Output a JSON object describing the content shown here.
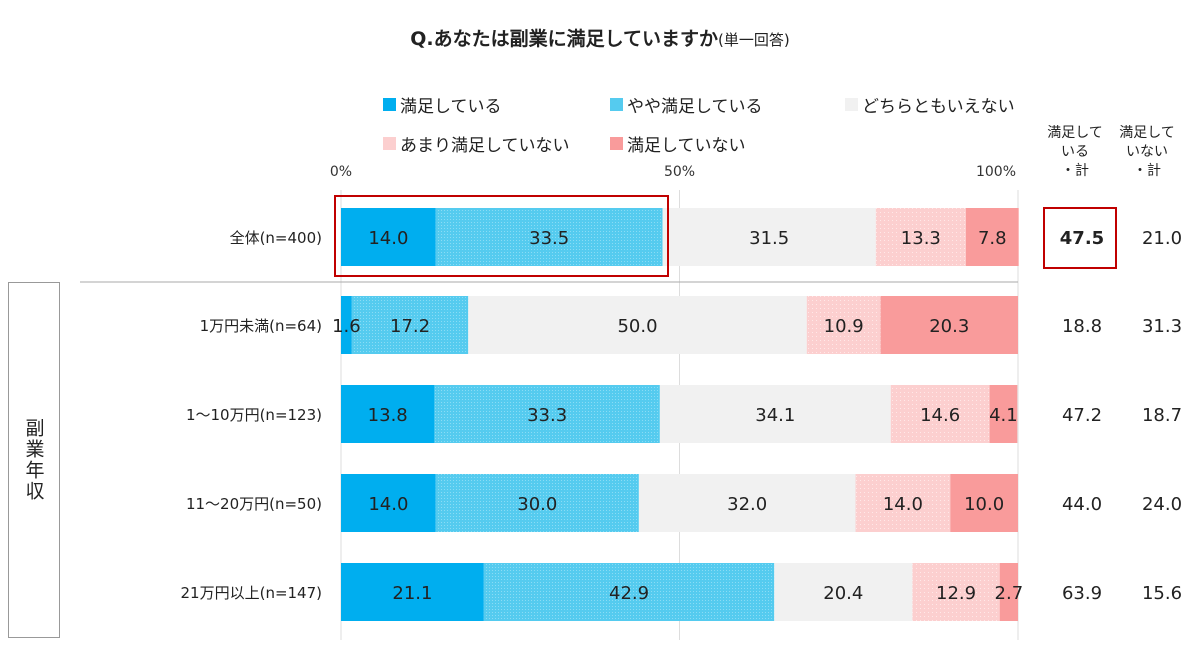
{
  "chart_data": {
    "type": "bar",
    "orientation": "horizontal",
    "stacked": true,
    "title": "Q.あなたは副業に満足していますか",
    "subtitle": "(単一回答)",
    "xlim": [
      0,
      100
    ],
    "x_ticks": [
      "0%",
      "50%",
      "100%"
    ],
    "legend_placement": "top",
    "group_label": "副業年収",
    "categories": [
      "全体(n=400)",
      "1万円未満(n=64)",
      "1～10万円(n=123)",
      "11～20万円(n=50)",
      "21万円以上(n=147)"
    ],
    "series": [
      {
        "name": "満足している",
        "color": "#00AEEF",
        "values": [
          14.0,
          1.6,
          13.8,
          14.0,
          21.1
        ]
      },
      {
        "name": "やや満足している",
        "color": "#55CBEF",
        "values": [
          33.5,
          17.2,
          33.3,
          30.0,
          42.9
        ]
      },
      {
        "name": "どちらともいえない",
        "color": "#F1F1F1",
        "values": [
          31.5,
          50.0,
          34.1,
          32.0,
          20.4
        ]
      },
      {
        "name": "あまり満足していない",
        "color": "#FCCFCF",
        "values": [
          13.3,
          10.9,
          14.6,
          14.0,
          12.9
        ]
      },
      {
        "name": "満足していない",
        "color": "#F99B9B",
        "values": [
          7.8,
          20.3,
          4.1,
          10.0,
          2.7
        ]
      }
    ],
    "summary_columns": [
      {
        "header": "満足している・計",
        "header_lines": "満足して\nいる\n・計",
        "values": [
          "47.5",
          "18.8",
          "47.2",
          "44.0",
          "63.9"
        ]
      },
      {
        "header": "満足していない・計",
        "header_lines": "満足して\nいない\n・計",
        "values": [
          "21.0",
          "31.3",
          "18.7",
          "24.0",
          "15.6"
        ]
      }
    ],
    "highlight": {
      "row": "全体(n=400)",
      "segments": [
        "満足している",
        "やや満足している"
      ],
      "summary": "47.5",
      "color": "#C00000"
    }
  }
}
